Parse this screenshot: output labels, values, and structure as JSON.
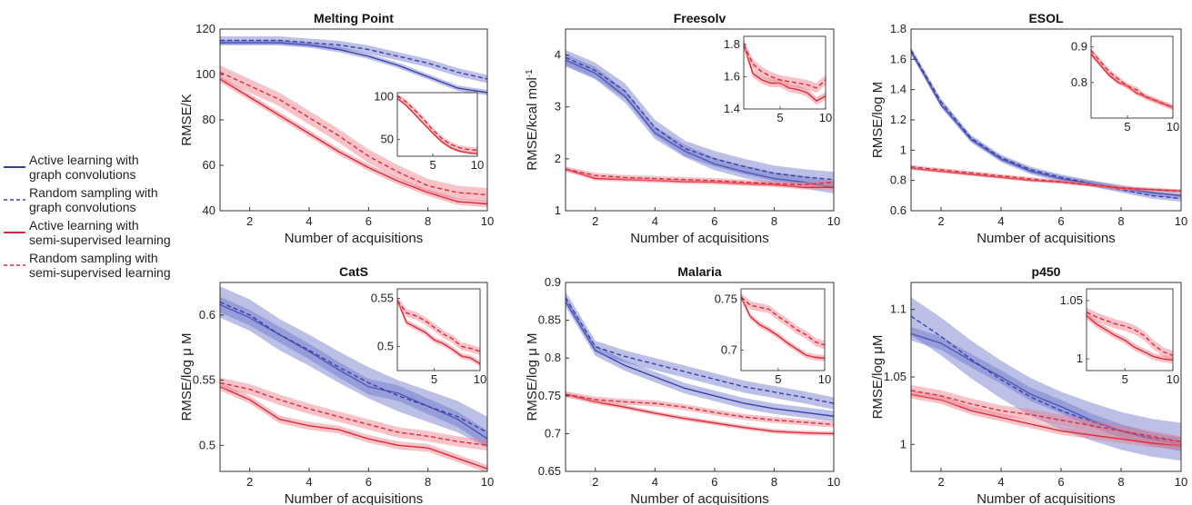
{
  "colors": {
    "active_graph": "#3840a8",
    "random_graph": "#3840a8",
    "active_semi": "#dd2a38",
    "random_semi": "#dd2a38",
    "band_blue": "#6a74c8",
    "band_red": "#ee7a84"
  },
  "legend": {
    "entries": [
      {
        "label_1": "Active learning with",
        "label_2": "graph convolutions",
        "style": "solid",
        "color": "#3840a8"
      },
      {
        "label_1": "Random sampling with",
        "label_2": "graph convolutions",
        "style": "dashed",
        "color": "#3840a8"
      },
      {
        "label_1": "Active learning with",
        "label_2": "semi-supervised learning",
        "style": "solid",
        "color": "#dd2a38"
      },
      {
        "label_1": "Random sampling with",
        "label_2": "semi-supervised learning",
        "style": "dashed",
        "color": "#dd2a38"
      }
    ]
  },
  "chart_data": [
    {
      "type": "line",
      "title": "Melting Point",
      "ylabel": "RMSE/K",
      "xlabel": "Number of acquisitions",
      "xlim": [
        1,
        10
      ],
      "ylim": [
        40,
        120
      ],
      "xticks": [
        "2",
        "4",
        "6",
        "8",
        "10"
      ],
      "yticks": [
        "40",
        "60",
        "80",
        "100",
        "120"
      ],
      "x": [
        1,
        2,
        3,
        4,
        5,
        6,
        7,
        8,
        9,
        10
      ],
      "series": [
        {
          "key": "active_graph",
          "values": [
            114,
            114,
            114,
            113,
            111,
            108,
            104,
            99,
            94,
            92
          ],
          "band": 1.2
        },
        {
          "key": "random_graph",
          "values": [
            115,
            115,
            115,
            114,
            113,
            111,
            108,
            105,
            101,
            98
          ],
          "band": 1.8
        },
        {
          "key": "active_semi",
          "values": [
            98,
            90,
            82,
            74,
            66,
            59,
            53,
            48,
            44,
            43
          ],
          "band": 1.5
        },
        {
          "key": "random_semi",
          "values": [
            101,
            95,
            89,
            81,
            73,
            64,
            57,
            51,
            48,
            47
          ],
          "band": 3
        }
      ],
      "inset": {
        "xlim": [
          1,
          10
        ],
        "ylim": [
          30,
          105
        ],
        "xticks": [
          "5",
          "10"
        ],
        "yticks": [
          "50",
          "100"
        ],
        "series": [
          {
            "key": "active_semi",
            "values": [
              98,
              90,
              79,
              68,
              57,
              47,
              40,
              36,
              34,
              33
            ],
            "band": 1.5
          },
          {
            "key": "random_semi",
            "values": [
              101,
              94,
              84,
              73,
              61,
              51,
              44,
              40,
              38,
              37
            ],
            "band": 3
          }
        ]
      }
    },
    {
      "type": "line",
      "title": "Freesolv",
      "ylabel": "RMSE/kcal mol",
      "ylabel_sup": "-1",
      "xlabel": "Number of acquisitions",
      "xlim": [
        1,
        10
      ],
      "ylim": [
        1,
        4.5
      ],
      "xticks": [
        "2",
        "4",
        "6",
        "8",
        "10"
      ],
      "yticks": [
        "1",
        "2",
        "3",
        "4"
      ],
      "x": [
        1,
        2,
        3,
        4,
        5,
        6,
        7,
        8,
        9,
        10
      ],
      "series": [
        {
          "key": "active_graph",
          "values": [
            3.9,
            3.65,
            3.2,
            2.5,
            2.15,
            1.9,
            1.75,
            1.62,
            1.55,
            1.45
          ],
          "band": 0.12
        },
        {
          "key": "random_graph",
          "values": [
            3.95,
            3.7,
            3.3,
            2.6,
            2.2,
            2.0,
            1.85,
            1.72,
            1.65,
            1.6
          ],
          "band": 0.15
        },
        {
          "key": "active_semi",
          "values": [
            1.8,
            1.62,
            1.6,
            1.58,
            1.56,
            1.55,
            1.52,
            1.5,
            1.45,
            1.45
          ],
          "band": 0.04
        },
        {
          "key": "random_semi",
          "values": [
            1.8,
            1.68,
            1.64,
            1.62,
            1.6,
            1.58,
            1.55,
            1.52,
            1.5,
            1.55
          ],
          "band": 0.05
        }
      ],
      "inset": {
        "xlim": [
          1,
          10
        ],
        "ylim": [
          1.4,
          1.85
        ],
        "xticks": [
          "5",
          "10"
        ],
        "yticks": [
          "1.4",
          "1.6",
          "1.8"
        ],
        "series": [
          {
            "key": "active_semi",
            "values": [
              1.8,
              1.62,
              1.58,
              1.56,
              1.56,
              1.53,
              1.52,
              1.5,
              1.45,
              1.48
            ],
            "band": 0.025
          },
          {
            "key": "random_semi",
            "values": [
              1.8,
              1.68,
              1.63,
              1.6,
              1.58,
              1.57,
              1.56,
              1.55,
              1.53,
              1.58
            ],
            "band": 0.03
          }
        ]
      }
    },
    {
      "type": "line",
      "title": "ESOL",
      "ylabel": "RMSE/log M",
      "xlabel": "Number of acquisitions",
      "xlim": [
        1,
        10
      ],
      "ylim": [
        0.6,
        1.8
      ],
      "xticks": [
        "2",
        "4",
        "6",
        "8",
        "10"
      ],
      "yticks": [
        "0.6",
        "0.8",
        "1",
        "1.2",
        "1.4",
        "1.6",
        "1.8"
      ],
      "x": [
        1,
        2,
        3,
        4,
        5,
        6,
        7,
        8,
        9,
        10
      ],
      "series": [
        {
          "key": "active_graph",
          "values": [
            1.65,
            1.3,
            1.07,
            0.94,
            0.86,
            0.81,
            0.78,
            0.75,
            0.72,
            0.7
          ],
          "band": 0.02
        },
        {
          "key": "random_graph",
          "values": [
            1.66,
            1.32,
            1.08,
            0.95,
            0.87,
            0.82,
            0.78,
            0.74,
            0.7,
            0.68
          ],
          "band": 0.02
        },
        {
          "key": "active_semi",
          "values": [
            0.88,
            0.86,
            0.84,
            0.82,
            0.8,
            0.79,
            0.77,
            0.75,
            0.74,
            0.73
          ],
          "band": 0.01
        },
        {
          "key": "random_semi",
          "values": [
            0.89,
            0.87,
            0.85,
            0.83,
            0.81,
            0.79,
            0.77,
            0.75,
            0.74,
            0.73
          ],
          "band": 0.012
        }
      ],
      "inset": {
        "xlim": [
          1,
          10
        ],
        "ylim": [
          0.7,
          0.93
        ],
        "xticks": [
          "5",
          "10"
        ],
        "yticks": [
          "0.8",
          "0.9"
        ],
        "series": [
          {
            "key": "active_semi",
            "values": [
              0.88,
              0.85,
              0.82,
              0.8,
              0.79,
              0.77,
              0.76,
              0.75,
              0.74,
              0.73
            ],
            "band": 0.006
          },
          {
            "key": "random_semi",
            "values": [
              0.89,
              0.86,
              0.83,
              0.81,
              0.79,
              0.78,
              0.76,
              0.75,
              0.74,
              0.73
            ],
            "band": 0.008
          }
        ]
      }
    },
    {
      "type": "line",
      "title": "CatS",
      "ylabel": "RMSE/log μ M",
      "xlabel": "Number of acquisitions",
      "xlim": [
        1,
        10
      ],
      "ylim": [
        0.48,
        0.625
      ],
      "xticks": [
        "2",
        "4",
        "6",
        "8",
        "10"
      ],
      "yticks": [
        "0.5",
        "0.55",
        "0.6"
      ],
      "x": [
        1,
        2,
        3,
        4,
        5,
        6,
        7,
        8,
        9,
        10
      ],
      "series": [
        {
          "key": "active_graph",
          "values": [
            0.608,
            0.598,
            0.585,
            0.572,
            0.558,
            0.545,
            0.54,
            0.53,
            0.52,
            0.505
          ],
          "band": 0.006
        },
        {
          "key": "random_graph",
          "values": [
            0.61,
            0.6,
            0.585,
            0.573,
            0.56,
            0.548,
            0.538,
            0.53,
            0.522,
            0.51
          ],
          "band": 0.012
        },
        {
          "key": "active_semi",
          "values": [
            0.545,
            0.535,
            0.52,
            0.515,
            0.512,
            0.505,
            0.5,
            0.498,
            0.49,
            0.482
          ],
          "band": 0.003
        },
        {
          "key": "random_semi",
          "values": [
            0.548,
            0.543,
            0.535,
            0.528,
            0.522,
            0.516,
            0.51,
            0.507,
            0.503,
            0.5
          ],
          "band": 0.004
        }
      ],
      "inset": {
        "xlim": [
          1,
          10
        ],
        "ylim": [
          0.475,
          0.56
        ],
        "xticks": [
          "5",
          "10"
        ],
        "yticks": [
          "0.5",
          "0.55"
        ],
        "series": [
          {
            "key": "active_semi",
            "values": [
              0.548,
              0.525,
              0.52,
              0.515,
              0.507,
              0.503,
              0.497,
              0.49,
              0.488,
              0.482
            ],
            "band": 0.003
          },
          {
            "key": "random_semi",
            "values": [
              0.548,
              0.535,
              0.532,
              0.527,
              0.52,
              0.513,
              0.508,
              0.5,
              0.498,
              0.495
            ],
            "band": 0.004
          }
        ]
      }
    },
    {
      "type": "line",
      "title": "Malaria",
      "ylabel": "RMSE/log μ M",
      "xlabel": "Number of acquisitions",
      "xlim": [
        1,
        10
      ],
      "ylim": [
        0.65,
        0.9
      ],
      "xticks": [
        "2",
        "4",
        "6",
        "8",
        "10"
      ],
      "yticks": [
        "0.65",
        "0.7",
        "0.75",
        "0.8",
        "0.85",
        "0.9"
      ],
      "x": [
        1,
        2,
        3,
        4,
        5,
        6,
        7,
        8,
        9,
        10
      ],
      "series": [
        {
          "key": "active_graph",
          "values": [
            0.875,
            0.81,
            0.79,
            0.775,
            0.76,
            0.75,
            0.74,
            0.733,
            0.728,
            0.723
          ],
          "band": 0.007
        },
        {
          "key": "random_graph",
          "values": [
            0.88,
            0.815,
            0.802,
            0.792,
            0.782,
            0.772,
            0.762,
            0.755,
            0.748,
            0.74
          ],
          "band": 0.008
        },
        {
          "key": "active_semi",
          "values": [
            0.752,
            0.742,
            0.735,
            0.727,
            0.72,
            0.714,
            0.708,
            0.703,
            0.701,
            0.7
          ],
          "band": 0.003
        },
        {
          "key": "random_semi",
          "values": [
            0.752,
            0.745,
            0.742,
            0.74,
            0.735,
            0.728,
            0.722,
            0.718,
            0.715,
            0.712
          ],
          "band": 0.004
        }
      ],
      "inset": {
        "xlim": [
          1,
          10
        ],
        "ylim": [
          0.68,
          0.76
        ],
        "xticks": [
          "5",
          "10"
        ],
        "yticks": [
          "0.7",
          "0.75"
        ],
        "series": [
          {
            "key": "active_semi",
            "values": [
              0.752,
              0.733,
              0.725,
              0.72,
              0.714,
              0.707,
              0.701,
              0.695,
              0.693,
              0.692
            ],
            "band": 0.003
          },
          {
            "key": "random_semi",
            "values": [
              0.752,
              0.744,
              0.742,
              0.74,
              0.733,
              0.727,
              0.72,
              0.715,
              0.708,
              0.705
            ],
            "band": 0.004
          }
        ]
      }
    },
    {
      "type": "line",
      "title": "p450",
      "ylabel": "RMSE/log μM",
      "xlabel": "Number of acquisitions",
      "xlim": [
        1,
        10
      ],
      "ylim": [
        0.98,
        1.12
      ],
      "xticks": [
        "2",
        "4",
        "6",
        "8",
        "10"
      ],
      "yticks": [
        "1",
        "1.05",
        "1.1"
      ],
      "x": [
        1,
        2,
        3,
        4,
        5,
        6,
        7,
        8,
        9,
        10
      ],
      "series": [
        {
          "key": "active_graph",
          "values": [
            1.082,
            1.075,
            1.062,
            1.05,
            1.037,
            1.028,
            1.018,
            1.01,
            1.004,
            1.0
          ],
          "band": 0.005
        },
        {
          "key": "random_graph",
          "values": [
            1.095,
            1.08,
            1.063,
            1.048,
            1.035,
            1.025,
            1.017,
            1.01,
            1.005,
            1.002
          ],
          "band": 0.014
        },
        {
          "key": "active_semi",
          "values": [
            1.037,
            1.033,
            1.025,
            1.02,
            1.015,
            1.01,
            1.007,
            1.004,
            1.001,
            0.999
          ],
          "band": 0.003
        },
        {
          "key": "random_semi",
          "values": [
            1.04,
            1.036,
            1.03,
            1.025,
            1.022,
            1.018,
            1.014,
            1.01,
            1.006,
            1.002
          ],
          "band": 0.004
        }
      ],
      "inset": {
        "xlim": [
          1,
          10
        ],
        "ylim": [
          0.99,
          1.06
        ],
        "xticks": [
          "5",
          "10"
        ],
        "yticks": [
          "1",
          "1.05"
        ],
        "series": [
          {
            "key": "active_semi",
            "values": [
              1.037,
              1.03,
              1.025,
              1.02,
              1.016,
              1.01,
              1.006,
              1.002,
              1.0,
              0.999
            ],
            "band": 0.003
          },
          {
            "key": "random_semi",
            "values": [
              1.04,
              1.036,
              1.033,
              1.03,
              1.028,
              1.025,
              1.02,
              1.012,
              1.006,
              1.003
            ],
            "band": 0.004
          }
        ]
      }
    }
  ]
}
